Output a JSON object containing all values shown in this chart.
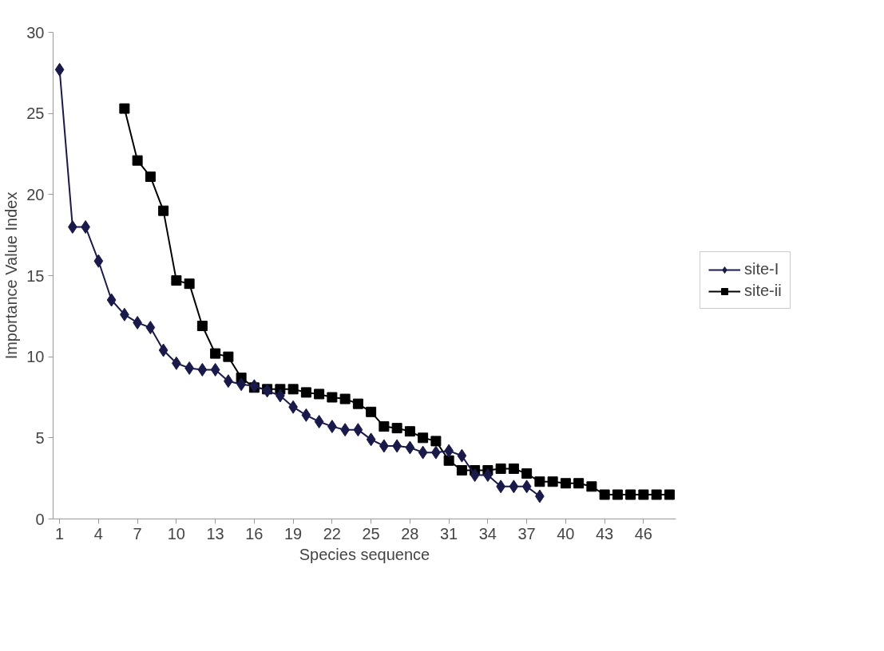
{
  "chart_data": {
    "type": "line",
    "xlabel": "Species sequence",
    "ylabel": "Importance Value Index",
    "categories": [
      "1",
      null,
      null,
      "4",
      null,
      null,
      "7",
      null,
      null,
      "10",
      null,
      null,
      "13",
      null,
      null,
      "16",
      null,
      null,
      "19",
      null,
      null,
      "22",
      null,
      null,
      "25",
      null,
      null,
      "28",
      null,
      null,
      "31",
      null,
      null,
      "34",
      null,
      null,
      "37",
      null,
      null,
      "40",
      null,
      null,
      "43",
      null,
      null,
      "46",
      null,
      null
    ],
    "ylim": [
      0,
      30
    ],
    "yticks": [
      0,
      5,
      10,
      15,
      20,
      25,
      30
    ],
    "grid": false,
    "legend": "right",
    "series": [
      {
        "name": "site-I",
        "color": "#1a1a4a",
        "marker": "diamond",
        "values": [
          27.7,
          18.0,
          18.0,
          15.9,
          13.5,
          12.6,
          12.1,
          11.8,
          10.4,
          9.6,
          9.3,
          9.2,
          9.2,
          8.5,
          8.3,
          8.2,
          7.9,
          7.6,
          6.9,
          6.4,
          6.0,
          5.7,
          5.5,
          5.5,
          4.9,
          4.5,
          4.5,
          4.4,
          4.1,
          4.1,
          4.2,
          3.9,
          2.7,
          2.7,
          2.0,
          2.0,
          2.0,
          1.4,
          null,
          null,
          null,
          null,
          null,
          null,
          null,
          null,
          null,
          null
        ]
      },
      {
        "name": "site-ii",
        "color": "#000000",
        "marker": "square",
        "values": [
          null,
          null,
          null,
          null,
          null,
          25.3,
          22.1,
          21.1,
          19.0,
          14.7,
          14.5,
          11.9,
          10.2,
          10.0,
          8.7,
          8.1,
          8.0,
          8.0,
          8.0,
          7.8,
          7.7,
          7.5,
          7.4,
          7.1,
          6.6,
          5.7,
          5.6,
          5.4,
          5.0,
          4.8,
          3.6,
          3.0,
          3.0,
          3.0,
          3.1,
          3.1,
          2.8,
          2.3,
          2.3,
          2.2,
          2.2,
          2.0,
          1.5,
          1.5,
          1.5,
          1.5,
          1.5,
          1.5
        ]
      }
    ]
  }
}
